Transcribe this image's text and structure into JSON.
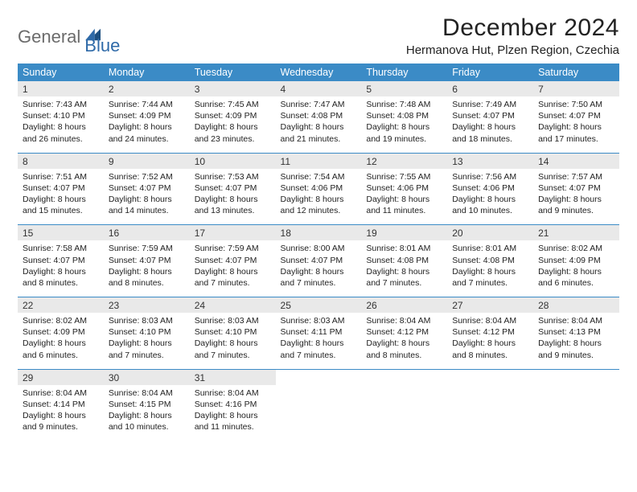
{
  "brand": {
    "word1": "General",
    "word2": "Blue"
  },
  "title": "December 2024",
  "location": "Hermanova Hut, Plzen Region, Czechia",
  "colors": {
    "header_bg": "#3b8bc6",
    "header_text": "#ffffff",
    "daynum_bg": "#e9e9e9",
    "rule": "#3b8bc6",
    "logo_gray": "#6b6b6b",
    "logo_blue": "#2f6aa8"
  },
  "daysOfWeek": [
    "Sunday",
    "Monday",
    "Tuesday",
    "Wednesday",
    "Thursday",
    "Friday",
    "Saturday"
  ],
  "weeks": [
    [
      {
        "n": "1",
        "sunrise": "7:43 AM",
        "sunset": "4:10 PM",
        "daylight": "8 hours and 26 minutes."
      },
      {
        "n": "2",
        "sunrise": "7:44 AM",
        "sunset": "4:09 PM",
        "daylight": "8 hours and 24 minutes."
      },
      {
        "n": "3",
        "sunrise": "7:45 AM",
        "sunset": "4:09 PM",
        "daylight": "8 hours and 23 minutes."
      },
      {
        "n": "4",
        "sunrise": "7:47 AM",
        "sunset": "4:08 PM",
        "daylight": "8 hours and 21 minutes."
      },
      {
        "n": "5",
        "sunrise": "7:48 AM",
        "sunset": "4:08 PM",
        "daylight": "8 hours and 19 minutes."
      },
      {
        "n": "6",
        "sunrise": "7:49 AM",
        "sunset": "4:07 PM",
        "daylight": "8 hours and 18 minutes."
      },
      {
        "n": "7",
        "sunrise": "7:50 AM",
        "sunset": "4:07 PM",
        "daylight": "8 hours and 17 minutes."
      }
    ],
    [
      {
        "n": "8",
        "sunrise": "7:51 AM",
        "sunset": "4:07 PM",
        "daylight": "8 hours and 15 minutes."
      },
      {
        "n": "9",
        "sunrise": "7:52 AM",
        "sunset": "4:07 PM",
        "daylight": "8 hours and 14 minutes."
      },
      {
        "n": "10",
        "sunrise": "7:53 AM",
        "sunset": "4:07 PM",
        "daylight": "8 hours and 13 minutes."
      },
      {
        "n": "11",
        "sunrise": "7:54 AM",
        "sunset": "4:06 PM",
        "daylight": "8 hours and 12 minutes."
      },
      {
        "n": "12",
        "sunrise": "7:55 AM",
        "sunset": "4:06 PM",
        "daylight": "8 hours and 11 minutes."
      },
      {
        "n": "13",
        "sunrise": "7:56 AM",
        "sunset": "4:06 PM",
        "daylight": "8 hours and 10 minutes."
      },
      {
        "n": "14",
        "sunrise": "7:57 AM",
        "sunset": "4:07 PM",
        "daylight": "8 hours and 9 minutes."
      }
    ],
    [
      {
        "n": "15",
        "sunrise": "7:58 AM",
        "sunset": "4:07 PM",
        "daylight": "8 hours and 8 minutes."
      },
      {
        "n": "16",
        "sunrise": "7:59 AM",
        "sunset": "4:07 PM",
        "daylight": "8 hours and 8 minutes."
      },
      {
        "n": "17",
        "sunrise": "7:59 AM",
        "sunset": "4:07 PM",
        "daylight": "8 hours and 7 minutes."
      },
      {
        "n": "18",
        "sunrise": "8:00 AM",
        "sunset": "4:07 PM",
        "daylight": "8 hours and 7 minutes."
      },
      {
        "n": "19",
        "sunrise": "8:01 AM",
        "sunset": "4:08 PM",
        "daylight": "8 hours and 7 minutes."
      },
      {
        "n": "20",
        "sunrise": "8:01 AM",
        "sunset": "4:08 PM",
        "daylight": "8 hours and 7 minutes."
      },
      {
        "n": "21",
        "sunrise": "8:02 AM",
        "sunset": "4:09 PM",
        "daylight": "8 hours and 6 minutes."
      }
    ],
    [
      {
        "n": "22",
        "sunrise": "8:02 AM",
        "sunset": "4:09 PM",
        "daylight": "8 hours and 6 minutes."
      },
      {
        "n": "23",
        "sunrise": "8:03 AM",
        "sunset": "4:10 PM",
        "daylight": "8 hours and 7 minutes."
      },
      {
        "n": "24",
        "sunrise": "8:03 AM",
        "sunset": "4:10 PM",
        "daylight": "8 hours and 7 minutes."
      },
      {
        "n": "25",
        "sunrise": "8:03 AM",
        "sunset": "4:11 PM",
        "daylight": "8 hours and 7 minutes."
      },
      {
        "n": "26",
        "sunrise": "8:04 AM",
        "sunset": "4:12 PM",
        "daylight": "8 hours and 8 minutes."
      },
      {
        "n": "27",
        "sunrise": "8:04 AM",
        "sunset": "4:12 PM",
        "daylight": "8 hours and 8 minutes."
      },
      {
        "n": "28",
        "sunrise": "8:04 AM",
        "sunset": "4:13 PM",
        "daylight": "8 hours and 9 minutes."
      }
    ],
    [
      {
        "n": "29",
        "sunrise": "8:04 AM",
        "sunset": "4:14 PM",
        "daylight": "8 hours and 9 minutes."
      },
      {
        "n": "30",
        "sunrise": "8:04 AM",
        "sunset": "4:15 PM",
        "daylight": "8 hours and 10 minutes."
      },
      {
        "n": "31",
        "sunrise": "8:04 AM",
        "sunset": "4:16 PM",
        "daylight": "8 hours and 11 minutes."
      },
      null,
      null,
      null,
      null
    ]
  ],
  "labels": {
    "sunrise": "Sunrise: ",
    "sunset": "Sunset: ",
    "daylight": "Daylight: "
  }
}
